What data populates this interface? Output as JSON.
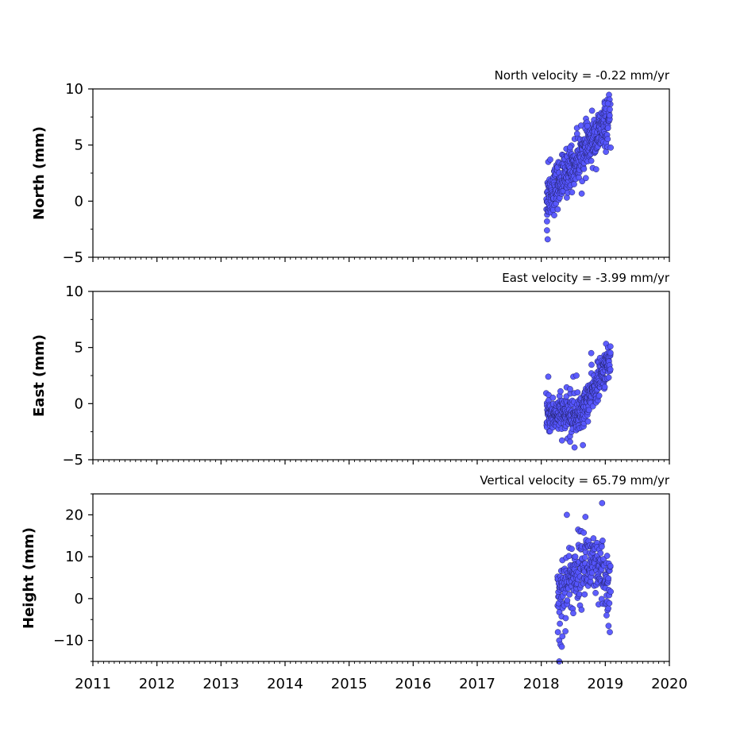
{
  "colors": {
    "marker_fill": "#5555ff",
    "marker_edge": "#222266",
    "axis": "#000000",
    "background": "#ffffff"
  },
  "chart_data": [
    {
      "type": "scatter",
      "ylabel": "North (mm)",
      "annotation": "North velocity = -0.22 mm/yr",
      "xlim": [
        2011,
        2020
      ],
      "ylim": [
        -5,
        10
      ],
      "yticks": [
        -5,
        0,
        5,
        10
      ],
      "ytick_labels": [
        "−5",
        "0",
        "5",
        "10"
      ],
      "grid": false,
      "trend": {
        "x0": 2018.08,
        "y0": 0.3,
        "x1": 2019.08,
        "y1": 7.3
      },
      "noise": 1.0,
      "outliers": [
        [
          2018.09,
          -2.6
        ],
        [
          2018.1,
          -3.4
        ],
        [
          2018.09,
          -1.8
        ],
        [
          2018.11,
          3.5
        ],
        [
          2018.14,
          3.7
        ],
        [
          2018.72,
          6.7
        ],
        [
          2018.99,
          8.7
        ],
        [
          2019.04,
          8.7
        ],
        [
          2018.56,
          6.0
        ],
        [
          2018.45,
          4.8
        ]
      ]
    },
    {
      "type": "scatter",
      "ylabel": "East (mm)",
      "annotation": "East velocity = -3.99 mm/yr",
      "xlim": [
        2011,
        2020
      ],
      "ylim": [
        -5,
        10
      ],
      "yticks": [
        -5,
        0,
        5,
        10
      ],
      "ytick_labels": [
        "−5",
        "0",
        "5",
        "10"
      ],
      "grid": false,
      "trend": {
        "x0": 2018.08,
        "y0": -1.0,
        "x1": 2018.6,
        "y1": -1.0,
        "x2": 2019.08,
        "y2": 4.0
      },
      "noise": 0.8,
      "outliers": [
        [
          2018.11,
          2.4
        ],
        [
          2018.45,
          1.3
        ],
        [
          2018.5,
          2.4
        ],
        [
          2018.55,
          2.5
        ],
        [
          2018.78,
          4.5
        ],
        [
          2018.52,
          -3.9
        ],
        [
          2018.45,
          -3.4
        ],
        [
          2018.65,
          -3.7
        ],
        [
          2019.08,
          5.1
        ],
        [
          2018.3,
          1.1
        ]
      ]
    },
    {
      "type": "scatter",
      "ylabel": "Height (mm)",
      "annotation": "Vertical velocity = 65.79 mm/yr",
      "xlim": [
        2011,
        2020
      ],
      "ylim": [
        -15,
        25
      ],
      "yticks": [
        -10,
        0,
        10,
        20
      ],
      "ytick_labels": [
        "−10",
        "0",
        "10",
        "20"
      ],
      "grid": false,
      "trend": {
        "x0": 2018.25,
        "y0": 1.5,
        "x1": 2018.7,
        "y1": 9.0,
        "x2": 2019.08,
        "y2": 3.0
      },
      "noise": 4.0,
      "outliers": [
        [
          2018.26,
          -8.0
        ],
        [
          2018.28,
          -10.0
        ],
        [
          2018.3,
          -11.0
        ],
        [
          2018.32,
          -11.5
        ],
        [
          2018.28,
          -15.0
        ],
        [
          2018.4,
          20.0
        ],
        [
          2018.69,
          19.5
        ],
        [
          2018.95,
          22.8
        ],
        [
          2019.07,
          -8.0
        ],
        [
          2019.05,
          -6.5
        ],
        [
          2019.02,
          -4.0
        ],
        [
          2018.5,
          -3.5
        ],
        [
          2018.29,
          -6.0
        ],
        [
          2018.33,
          -9.0
        ]
      ]
    }
  ],
  "x_axis": {
    "ticks": [
      2011,
      2012,
      2013,
      2014,
      2015,
      2016,
      2017,
      2018,
      2019,
      2020
    ],
    "labels": [
      "2011",
      "2012",
      "2013",
      "2014",
      "2015",
      "2016",
      "2017",
      "2018",
      "2019",
      "2020"
    ],
    "minor_per_major": 12
  }
}
